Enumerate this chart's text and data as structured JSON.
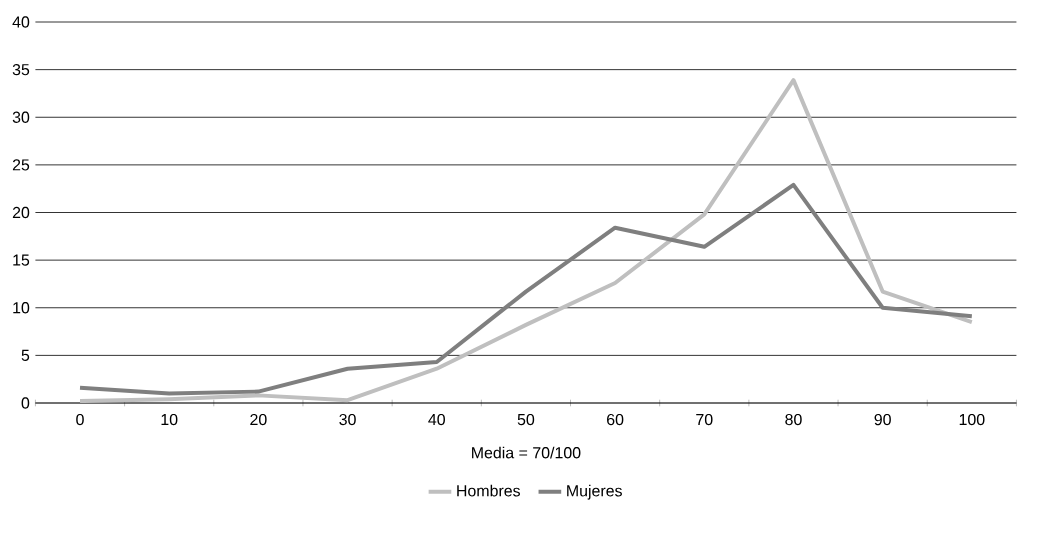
{
  "chart_data": {
    "type": "line",
    "categories": [
      "0",
      "10",
      "20",
      "30",
      "40",
      "50",
      "60",
      "70",
      "80",
      "90",
      "100"
    ],
    "xlabel": "Media = 70/100",
    "series": [
      {
        "name": "Hombres",
        "color": "#bfbfbf",
        "values": [
          0.2,
          0.4,
          0.8,
          0.3,
          3.6,
          8.2,
          12.6,
          19.8,
          33.9,
          11.7,
          8.5
        ]
      },
      {
        "name": "Mujeres",
        "color": "#7f7f7f",
        "values": [
          1.6,
          1.0,
          1.2,
          3.6,
          4.3,
          11.7,
          18.4,
          16.4,
          22.9,
          10.0,
          9.1
        ]
      }
    ],
    "ylim": [
      0,
      40
    ],
    "yticks": [
      0,
      5,
      10,
      15,
      20,
      25,
      30,
      35,
      40
    ],
    "grid": "y",
    "legend": "bottom",
    "marker": "none",
    "line_style": "solid"
  }
}
